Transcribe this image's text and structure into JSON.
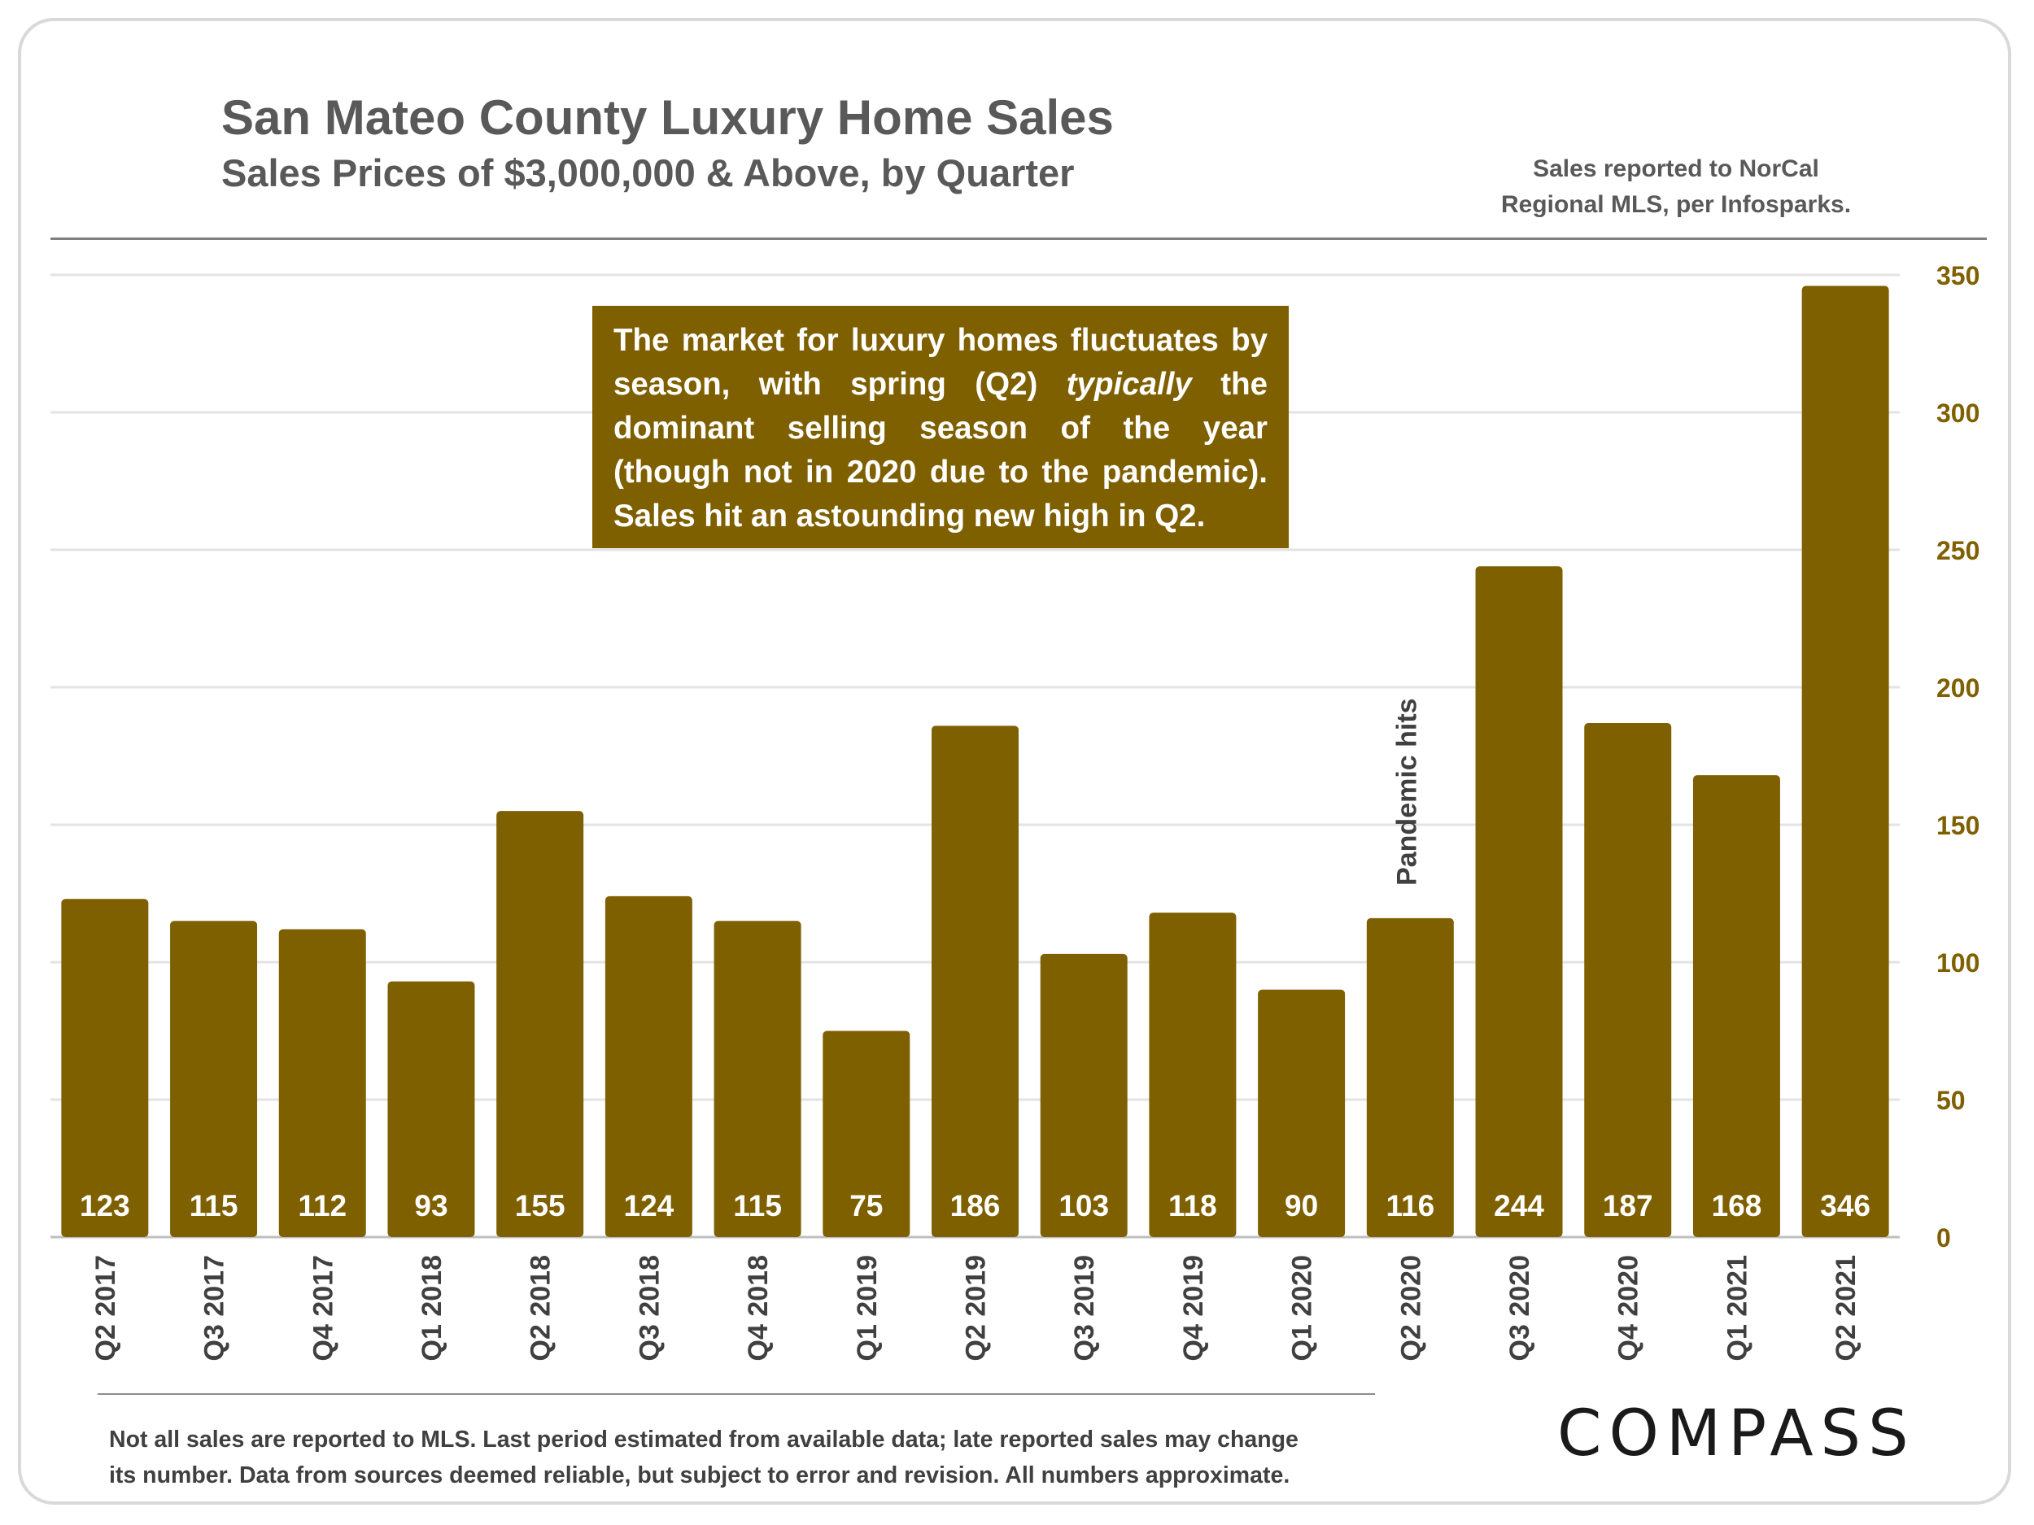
{
  "header": {
    "title": "San Mateo County Luxury Home Sales",
    "subtitle": "Sales Prices of $3,000,000 & Above, by Quarter",
    "source_line1": "Sales reported to NorCal",
    "source_line2": "Regional MLS, per Infosparks."
  },
  "callout": {
    "part1": "The market for luxury homes fluctuates by season, with spring (Q2) ",
    "emphasis": "typically",
    "part2": " the dominant selling season of the year (though not in 2020 due to the pandemic). Sales hit an astounding new high in Q2."
  },
  "footer": {
    "note_line1": "Not all sales are reported to MLS. Last period estimated from available data; late reported sales may change",
    "note_line2": "its number. Data from sources deemed reliable, but subject to error and revision. All numbers  approximate.",
    "logo": "COMPASS"
  },
  "colors": {
    "bar": "#7f6000",
    "axis_text": "#7f6000",
    "grid": "#e3e3e3",
    "label_text": "#ffffff",
    "category_text": "#404040"
  },
  "chart_data": {
    "type": "bar",
    "title": "San Mateo County Luxury Home Sales",
    "subtitle": "Sales Prices of $3,000,000 & Above, by Quarter",
    "categories": [
      "Q2 2017",
      "Q3 2017",
      "Q4 2017",
      "Q1 2018",
      "Q2 2018",
      "Q3 2018",
      "Q4 2018",
      "Q1 2019",
      "Q2 2019",
      "Q3 2019",
      "Q4 2019",
      "Q1 2020",
      "Q2 2020",
      "Q3 2020",
      "Q4 2020",
      "Q1 2021",
      "Q2 2021"
    ],
    "values": [
      123,
      115,
      112,
      93,
      155,
      124,
      115,
      75,
      186,
      103,
      118,
      90,
      116,
      244,
      187,
      168,
      346
    ],
    "ylim": [
      0,
      350
    ],
    "yticks": [
      0,
      50,
      100,
      150,
      200,
      250,
      300,
      350
    ],
    "y_axis_side": "right",
    "grid": true,
    "data_labels": "inside-base",
    "annotations": [
      {
        "text": "Pandemic hits",
        "category": "Q2 2020",
        "orientation": "vertical"
      }
    ]
  }
}
